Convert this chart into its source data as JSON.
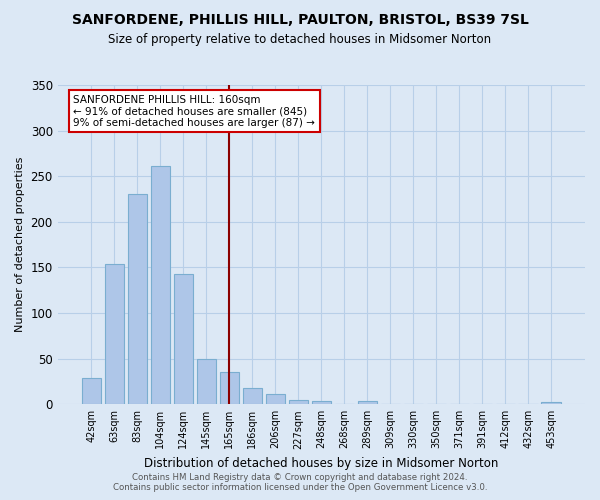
{
  "title": "SANFORDENE, PHILLIS HILL, PAULTON, BRISTOL, BS39 7SL",
  "subtitle": "Size of property relative to detached houses in Midsomer Norton",
  "xlabel": "Distribution of detached houses by size in Midsomer Norton",
  "ylabel": "Number of detached properties",
  "footer_line1": "Contains HM Land Registry data © Crown copyright and database right 2024.",
  "footer_line2": "Contains public sector information licensed under the Open Government Licence v3.0.",
  "bar_labels": [
    "42sqm",
    "63sqm",
    "83sqm",
    "104sqm",
    "124sqm",
    "145sqm",
    "165sqm",
    "186sqm",
    "206sqm",
    "227sqm",
    "248sqm",
    "268sqm",
    "289sqm",
    "309sqm",
    "330sqm",
    "350sqm",
    "371sqm",
    "391sqm",
    "412sqm",
    "432sqm",
    "453sqm"
  ],
  "bar_values": [
    29,
    154,
    231,
    261,
    143,
    50,
    35,
    18,
    11,
    5,
    4,
    0,
    4,
    0,
    0,
    0,
    0,
    0,
    0,
    0,
    3
  ],
  "bar_color": "#aec6e8",
  "bar_edge_color": "#7aaed0",
  "ylim": [
    0,
    350
  ],
  "yticks": [
    0,
    50,
    100,
    150,
    200,
    250,
    300,
    350
  ],
  "vline_x_index": 6,
  "vline_color": "#8b0000",
  "annotation_text": "SANFORDENE PHILLIS HILL: 160sqm\n← 91% of detached houses are smaller (845)\n9% of semi-detached houses are larger (87) →",
  "annotation_box_edge_color": "#cc0000",
  "background_color": "#dce8f5",
  "plot_bg_color": "#dce8f5",
  "grid_color": "#b8cfe8"
}
